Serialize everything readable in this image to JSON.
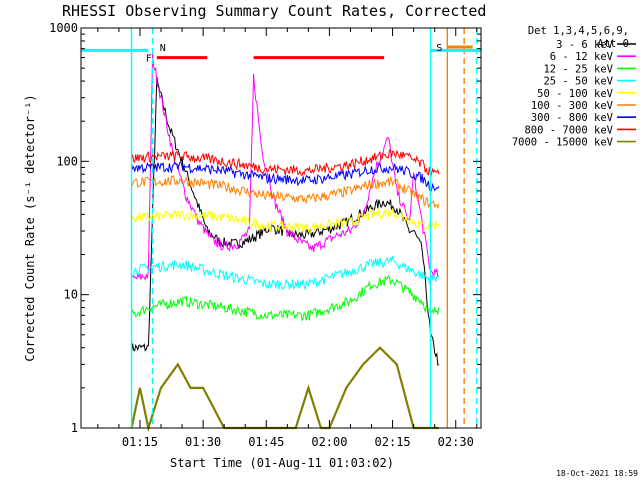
{
  "chart_data": {
    "type": "line",
    "title": "RHESSI Observing Summary Count Rates, Corrected",
    "xlabel": "Start Time (01-Aug-11 01:03:02)",
    "ylabel": "Corrected Count Rate (s⁻¹ detector⁻¹)",
    "yscale": "log",
    "ylim": [
      1,
      1000
    ],
    "xlim_minutes": [
      1.0,
      96.0
    ],
    "x_units": "minutes after 01:00 UT",
    "xticks": [
      {
        "minute": 15,
        "label": "01:15"
      },
      {
        "minute": 30,
        "label": "01:30"
      },
      {
        "minute": 45,
        "label": "01:45"
      },
      {
        "minute": 60,
        "label": "02:00"
      },
      {
        "minute": 75,
        "label": "02:15"
      },
      {
        "minute": 90,
        "label": "02:30"
      }
    ],
    "yticks": [
      {
        "value": 1,
        "label": "1"
      },
      {
        "value": 10,
        "label": "10"
      },
      {
        "value": 100,
        "label": "100"
      },
      {
        "value": 1000,
        "label": "1000"
      }
    ],
    "legend": {
      "header": [
        "Det 1,3,4,5,6,9,",
        "Att 0"
      ],
      "placement": "right"
    },
    "series": [
      {
        "name": "3 - 6 keV",
        "color": "#000000",
        "x": [
          13,
          17,
          19,
          22,
          25,
          28,
          31,
          34,
          37,
          40,
          43,
          46,
          49,
          52,
          55,
          58,
          61,
          64,
          67,
          70,
          73,
          76,
          79,
          80,
          82,
          84,
          86
        ],
        "y": [
          4,
          4,
          400,
          180,
          100,
          55,
          30,
          25,
          24,
          25,
          28,
          32,
          30,
          28,
          28,
          30,
          32,
          35,
          40,
          45,
          50,
          45,
          30,
          30,
          22,
          5,
          3
        ]
      },
      {
        "name": "6 - 12 keV",
        "color": "#ff00ff",
        "x": [
          13,
          17,
          18,
          20,
          23,
          26,
          29,
          32,
          35,
          38,
          41,
          42,
          44,
          47,
          50,
          53,
          56,
          59,
          62,
          65,
          68,
          71,
          74,
          76,
          79,
          80,
          82,
          84,
          86
        ],
        "y": [
          13,
          14,
          600,
          300,
          110,
          55,
          35,
          26,
          23,
          24,
          30,
          430,
          120,
          50,
          30,
          25,
          22,
          25,
          28,
          30,
          40,
          90,
          150,
          60,
          35,
          80,
          35,
          15,
          14
        ]
      },
      {
        "name": "12 - 25 keV",
        "color": "#00ff00",
        "x": [
          13,
          17,
          25,
          35,
          45,
          55,
          65,
          70,
          75,
          78,
          82,
          84,
          86
        ],
        "y": [
          7,
          8,
          9,
          8,
          7,
          7,
          9,
          12,
          13,
          11,
          9,
          7,
          8
        ]
      },
      {
        "name": "25 - 50 keV",
        "color": "#00ffff",
        "x": [
          13,
          17,
          25,
          35,
          45,
          55,
          65,
          70,
          75,
          78,
          82,
          84,
          86
        ],
        "y": [
          15,
          16,
          17,
          14,
          12,
          12,
          15,
          17,
          18,
          16,
          14,
          13,
          14
        ]
      },
      {
        "name": "50 - 100 keV",
        "color": "#ffff00",
        "x": [
          13,
          17,
          25,
          35,
          45,
          55,
          65,
          70,
          75,
          78,
          82,
          84,
          86
        ],
        "y": [
          38,
          38,
          40,
          38,
          33,
          32,
          35,
          40,
          42,
          38,
          33,
          33,
          34
        ]
      },
      {
        "name": "100 - 300 keV",
        "color": "#ff8000",
        "x": [
          13,
          17,
          25,
          35,
          45,
          55,
          65,
          70,
          75,
          78,
          82,
          84,
          86
        ],
        "y": [
          70,
          70,
          72,
          65,
          55,
          52,
          60,
          68,
          70,
          62,
          52,
          48,
          48
        ]
      },
      {
        "name": "300 - 800 keV",
        "color": "#0000ff",
        "x": [
          13,
          17,
          25,
          35,
          45,
          55,
          65,
          70,
          75,
          78,
          82,
          84,
          86
        ],
        "y": [
          90,
          90,
          92,
          85,
          75,
          72,
          80,
          88,
          90,
          85,
          75,
          65,
          65
        ]
      },
      {
        "name": "800 - 7000 keV",
        "color": "#ff0000",
        "x": [
          13,
          17,
          25,
          35,
          45,
          55,
          65,
          70,
          75,
          78,
          82,
          84,
          86
        ],
        "y": [
          105,
          108,
          110,
          100,
          88,
          85,
          95,
          105,
          115,
          110,
          95,
          82,
          80
        ]
      },
      {
        "name": "7000 - 15000 keV",
        "color": "#808000",
        "x": [
          13,
          15,
          17,
          20,
          24,
          27,
          30,
          35,
          40,
          45,
          50,
          52,
          55,
          58,
          60,
          64,
          68,
          72,
          76,
          80,
          84,
          86
        ],
        "y": [
          1,
          2,
          1,
          2,
          3,
          2,
          2,
          1,
          1,
          1,
          1,
          1,
          2,
          1,
          1,
          2,
          3,
          4,
          3,
          1,
          1,
          1
        ]
      }
    ],
    "annotations": [
      {
        "label": "F",
        "color": "#ff0000",
        "bars": [
          [
            19,
            31
          ],
          [
            42,
            73
          ]
        ],
        "value": 600
      },
      {
        "label": "N",
        "color": "#00ffff",
        "at_minute": 19
      },
      {
        "label": "S",
        "color": "#ff8000",
        "bars": [
          [
            88,
            94
          ]
        ],
        "value": 720
      }
    ],
    "cyan_bars": [
      [
        1,
        17
      ],
      [
        84,
        96
      ]
    ],
    "cyan_bar_value": 680,
    "vlines": [
      {
        "minute": 13,
        "color": "#00ffff",
        "style": "solid"
      },
      {
        "minute": 18,
        "color": "#00ffff",
        "style": "dashed"
      },
      {
        "minute": 84,
        "color": "#00ffff",
        "style": "solid"
      },
      {
        "minute": 88,
        "color": "#ff8000",
        "style": "solid"
      },
      {
        "minute": 92,
        "color": "#ff8000",
        "style": "dashed"
      },
      {
        "minute": 95,
        "color": "#00ffff",
        "style": "dashed"
      }
    ],
    "grid": false
  },
  "footer": {
    "timestamp": "18-Oct-2021 18:59"
  }
}
